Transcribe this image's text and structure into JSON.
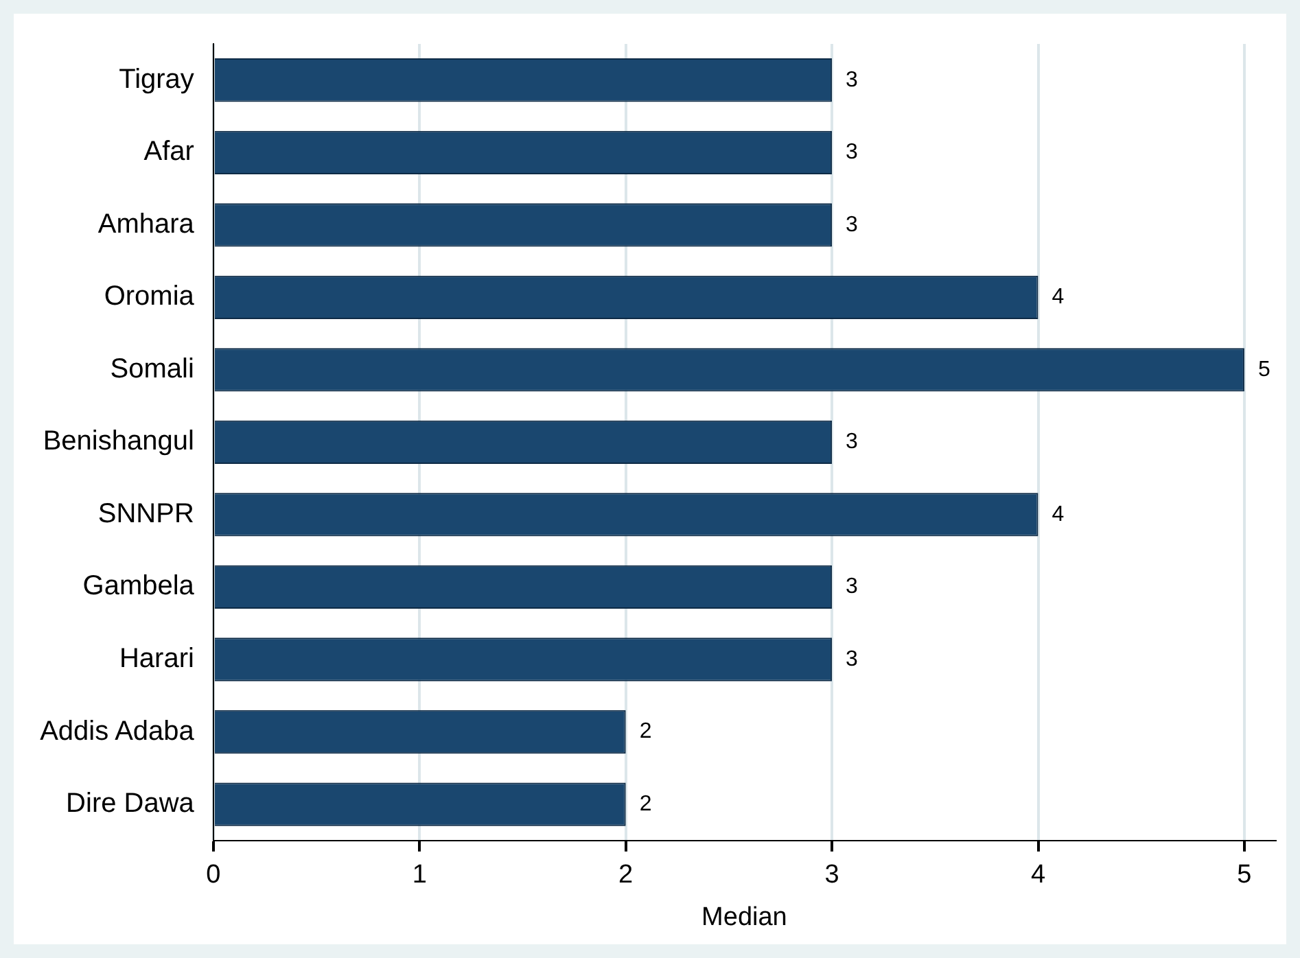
{
  "chart_data": {
    "type": "bar",
    "orientation": "horizontal",
    "xlabel": "Median",
    "categories": [
      "Tigray",
      "Afar",
      "Amhara",
      "Oromia",
      "Somali",
      "Benishangul",
      "SNNPR",
      "Gambela",
      "Harari",
      "Addis Adaba",
      "Dire Dawa"
    ],
    "values": [
      3,
      3,
      3,
      4,
      5,
      3,
      4,
      3,
      3,
      2,
      2
    ],
    "color": "#1a476f",
    "xlim": [
      0,
      5.15
    ],
    "xticks": [
      0,
      1,
      2,
      3,
      4,
      5
    ],
    "grid": "x",
    "legend": false,
    "data_labels": true
  }
}
